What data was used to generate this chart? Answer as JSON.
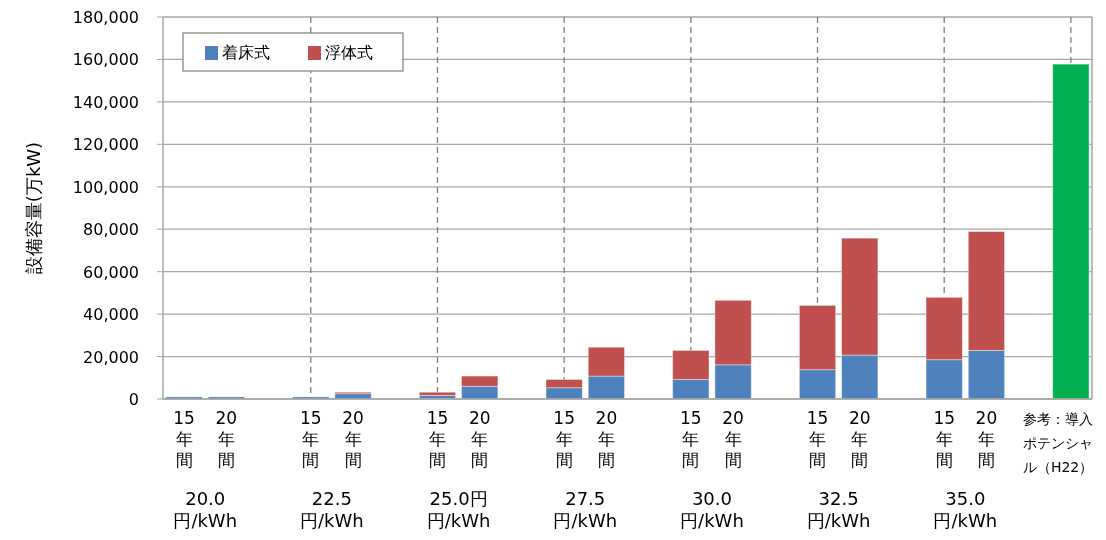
{
  "chart_data": {
    "type": "bar",
    "stacked": true,
    "ylabel": "設備容量(万kW)",
    "categories": [
      "15年間",
      "20年間",
      null,
      "15年間",
      "20年間",
      null,
      "15年間",
      "20年間",
      null,
      "15年間",
      "20年間",
      null,
      "15年間",
      "20年間",
      null,
      "15年間",
      "20年間",
      null,
      "15年間",
      "20年間",
      null,
      "参考：導入ポテンシャル（H22）"
    ],
    "series": [
      {
        "name": "着床式",
        "color": "#4f81bd",
        "values": [
          1000,
          1000,
          null,
          1000,
          2500,
          null,
          1700,
          6000,
          null,
          5300,
          10800,
          null,
          9200,
          16100,
          null,
          13800,
          20700,
          null,
          18500,
          22900,
          null,
          null
        ]
      },
      {
        "name": "浮体式",
        "color": "#c0504d",
        "values": [
          null,
          null,
          null,
          null,
          700,
          null,
          1500,
          4800,
          null,
          3900,
          13600,
          null,
          13700,
          30400,
          null,
          30300,
          55100,
          null,
          29400,
          56000,
          null,
          null
        ]
      },
      {
        "color": "#00b050",
        "values": [
          null,
          null,
          null,
          null,
          null,
          null,
          null,
          null,
          null,
          null,
          null,
          null,
          null,
          null,
          null,
          null,
          null,
          null,
          null,
          null,
          null,
          157800
        ]
      }
    ],
    "ylim": [
      0,
      180000
    ],
    "yticks": [
      {
        "value": 0,
        "label": "0"
      },
      {
        "value": 20000,
        "label": "20,000"
      },
      {
        "value": 40000,
        "label": "40,000"
      },
      {
        "value": 60000,
        "label": "60,000"
      },
      {
        "value": 80000,
        "label": "80,000"
      },
      {
        "value": 100000,
        "label": "100,000"
      },
      {
        "value": 120000,
        "label": "120,000"
      },
      {
        "value": 140000,
        "label": "140,000"
      },
      {
        "value": 160000,
        "label": "160,000"
      },
      {
        "value": 180000,
        "label": "180,000"
      }
    ],
    "grid": true,
    "legend": "top left",
    "annotations": [
      "20.0円/kWh",
      "22.5円/kWh",
      "25.0円円/kWh",
      "27.5円/kWh",
      "30.0円/kWh",
      "32.5円/kWh",
      "35.0円/kWh"
    ]
  }
}
